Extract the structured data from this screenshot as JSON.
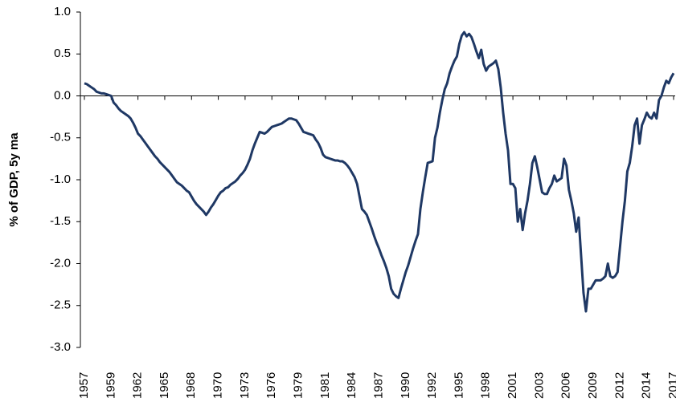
{
  "chart_data": {
    "type": "line",
    "ylabel": "% of GDP, 5y ma",
    "color": "#1f3864",
    "ylim": [
      -3.0,
      1.0
    ],
    "yticks": [
      {
        "value": 1.0,
        "label": "1.0"
      },
      0.5,
      {
        "value": 0.0,
        "label": "0.0"
      },
      -0.5,
      {
        "value": -1.0,
        "label": "-1.0"
      },
      -1.5,
      {
        "value": -2.0,
        "label": "-2.0"
      },
      -2.5,
      {
        "value": -3.0,
        "label": "-3.0"
      }
    ],
    "categories": [
      "1957",
      null,
      null,
      null,
      null,
      null,
      null,
      null,
      null,
      null,
      null,
      "1959",
      null,
      null,
      null,
      null,
      null,
      null,
      null,
      null,
      null,
      null,
      "1962",
      null,
      null,
      null,
      null,
      null,
      null,
      null,
      null,
      null,
      null,
      "1965",
      null,
      null,
      null,
      null,
      null,
      null,
      null,
      null,
      null,
      null,
      "1968",
      null,
      null,
      null,
      null,
      null,
      null,
      null,
      null,
      null,
      null,
      "1970",
      null,
      null,
      null,
      null,
      null,
      null,
      null,
      null,
      null,
      null,
      "1973",
      null,
      null,
      null,
      null,
      null,
      null,
      null,
      null,
      null,
      null,
      "1976",
      null,
      null,
      null,
      null,
      null,
      null,
      null,
      null,
      null,
      null,
      "1979",
      null,
      null,
      null,
      null,
      null,
      null,
      null,
      null,
      null,
      null,
      "1981",
      null,
      null,
      null,
      null,
      null,
      null,
      null,
      null,
      null,
      null,
      "1984",
      null,
      null,
      null,
      null,
      null,
      null,
      null,
      null,
      null,
      null,
      "1987",
      null,
      null,
      null,
      null,
      null,
      null,
      null,
      null,
      null,
      null,
      "1990",
      null,
      null,
      null,
      null,
      null,
      null,
      null,
      null,
      null,
      null,
      "1992",
      null,
      null,
      null,
      null,
      null,
      null,
      null,
      null,
      null,
      null,
      "1995",
      null,
      null,
      null,
      null,
      null,
      null,
      null,
      null,
      null,
      null,
      "1998",
      null,
      null,
      null,
      null,
      null,
      null,
      null,
      null,
      null,
      null,
      "2001",
      null,
      null,
      null,
      null,
      null,
      null,
      null,
      null,
      null,
      null,
      "2003",
      null,
      null,
      null,
      null,
      null,
      null,
      null,
      null,
      null,
      null,
      "2006",
      null,
      null,
      null,
      null,
      null,
      null,
      null,
      null,
      null,
      null,
      "2009",
      null,
      null,
      null,
      null,
      null,
      null,
      null,
      null,
      null,
      null,
      "2012",
      null,
      null,
      null,
      null,
      null,
      null,
      null,
      null,
      null,
      null,
      "2014",
      null,
      null,
      null,
      null,
      null,
      null,
      null,
      null,
      null,
      null,
      "2017"
    ],
    "values": [
      0.15,
      0.14,
      0.12,
      0.1,
      0.08,
      0.05,
      0.04,
      0.03,
      0.03,
      0.02,
      0.01,
      0.0,
      -0.08,
      -0.11,
      -0.15,
      -0.18,
      -0.2,
      -0.22,
      -0.24,
      -0.27,
      -0.32,
      -0.38,
      -0.45,
      -0.48,
      -0.52,
      -0.56,
      -0.6,
      -0.64,
      -0.68,
      -0.72,
      -0.75,
      -0.79,
      -0.82,
      -0.85,
      -0.88,
      -0.91,
      -0.95,
      -0.99,
      -1.03,
      -1.05,
      -1.07,
      -1.1,
      -1.13,
      -1.15,
      -1.2,
      -1.25,
      -1.29,
      -1.32,
      -1.35,
      -1.38,
      -1.42,
      -1.38,
      -1.33,
      -1.29,
      -1.24,
      -1.19,
      -1.15,
      -1.13,
      -1.1,
      -1.09,
      -1.06,
      -1.04,
      -1.02,
      -0.99,
      -0.95,
      -0.92,
      -0.88,
      -0.82,
      -0.75,
      -0.65,
      -0.57,
      -0.5,
      -0.43,
      -0.44,
      -0.45,
      -0.43,
      -0.4,
      -0.37,
      -0.36,
      -0.35,
      -0.34,
      -0.33,
      -0.31,
      -0.29,
      -0.27,
      -0.27,
      -0.28,
      -0.29,
      -0.33,
      -0.38,
      -0.43,
      -0.44,
      -0.45,
      -0.46,
      -0.47,
      -0.52,
      -0.56,
      -0.62,
      -0.7,
      -0.73,
      -0.74,
      -0.75,
      -0.76,
      -0.77,
      -0.77,
      -0.78,
      -0.78,
      -0.8,
      -0.83,
      -0.87,
      -0.92,
      -0.97,
      -1.05,
      -1.2,
      -1.35,
      -1.38,
      -1.42,
      -1.5,
      -1.58,
      -1.67,
      -1.75,
      -1.82,
      -1.9,
      -1.97,
      -2.05,
      -2.15,
      -2.3,
      -2.36,
      -2.39,
      -2.41,
      -2.3,
      -2.2,
      -2.1,
      -2.02,
      -1.92,
      -1.82,
      -1.73,
      -1.65,
      -1.35,
      -1.15,
      -0.97,
      -0.8,
      -0.79,
      -0.78,
      -0.5,
      -0.38,
      -0.2,
      -0.05,
      0.08,
      0.15,
      0.27,
      0.35,
      0.42,
      0.47,
      0.62,
      0.72,
      0.76,
      0.71,
      0.74,
      0.7,
      0.62,
      0.53,
      0.45,
      0.55,
      0.38,
      0.3,
      0.35,
      0.37,
      0.39,
      0.42,
      0.32,
      0.1,
      -0.2,
      -0.45,
      -0.65,
      -1.05,
      -1.05,
      -1.1,
      -1.5,
      -1.35,
      -1.6,
      -1.4,
      -1.25,
      -1.05,
      -0.8,
      -0.72,
      -0.85,
      -1.0,
      -1.15,
      -1.17,
      -1.17,
      -1.1,
      -1.05,
      -0.95,
      -1.02,
      -1.0,
      -0.98,
      -0.75,
      -0.83,
      -1.12,
      -1.25,
      -1.4,
      -1.62,
      -1.45,
      -1.9,
      -2.35,
      -2.57,
      -2.3,
      -2.3,
      -2.25,
      -2.2,
      -2.2,
      -2.2,
      -2.18,
      -2.15,
      -2.0,
      -2.15,
      -2.17,
      -2.15,
      -2.1,
      -1.8,
      -1.5,
      -1.25,
      -0.9,
      -0.8,
      -0.6,
      -0.35,
      -0.27,
      -0.57,
      -0.35,
      -0.28,
      -0.2,
      -0.25,
      -0.27,
      -0.2,
      -0.27,
      -0.05,
      0.0,
      0.1,
      0.18,
      0.15,
      0.22,
      0.27
    ]
  }
}
